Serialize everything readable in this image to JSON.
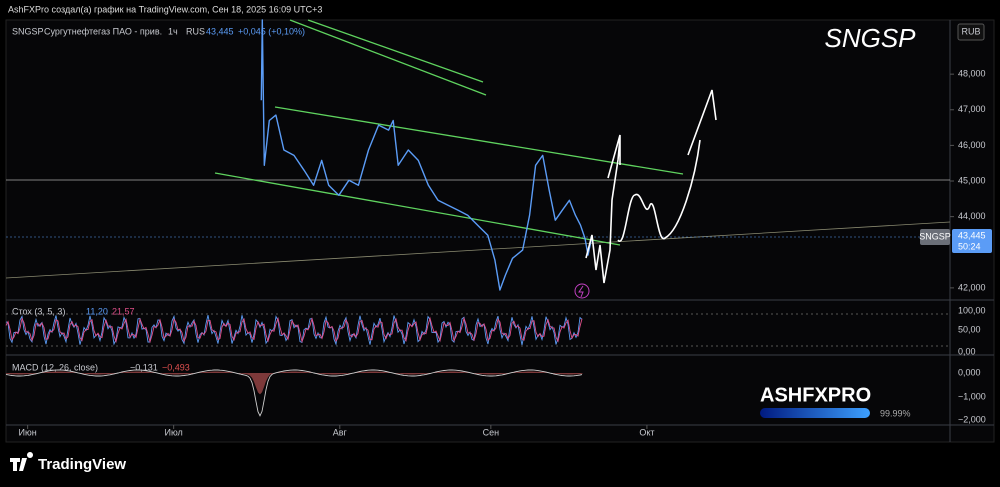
{
  "header": {
    "credit": "AshFXPro создал(а) график на TradingView.com, Сен 18, 2025 16:09 UTC+3"
  },
  "chart_data": {
    "type": "line",
    "title": "SNGSP",
    "legend": {
      "symbol": "SNGSP",
      "name": "Сургутнефтегаз ПАО - прив.",
      "interval": "1ч",
      "exchange": "RUS",
      "last": "43,445",
      "change": "+0,045 (+0,10%)"
    },
    "currency": "RUB",
    "last_label": {
      "symbol": "SNGSP",
      "price": "43,445",
      "countdown": "50:24"
    },
    "x": [
      198.4,
      198.6,
      199.0,
      200.0,
      201.3,
      202.9,
      204.9,
      206.9,
      208.8,
      210.4,
      211.8,
      213.8,
      215.8,
      217.7,
      219.7,
      221.7,
      223.7,
      224.6,
      225.6,
      227.6,
      229.6,
      231.6,
      233.5,
      235.5,
      237.5,
      239.4,
      241.4,
      243.4,
      244.8,
      245.8,
      246.9,
      248.3,
      250.3,
      251.7,
      252.9,
      254.3,
      255.6,
      256.8,
      258.2,
      259.6,
      260.8,
      261.8,
      262.7,
      263.3,
      264.1
    ],
    "series": [
      {
        "name": "SNGSP",
        "color": "#5b9cf6",
        "values": [
          47270,
          49520,
          45440,
          46700,
          46850,
          45870,
          45720,
          45300,
          44880,
          45580,
          44880,
          44600,
          45020,
          44880,
          45870,
          46570,
          46430,
          46700,
          45440,
          45870,
          45580,
          44880,
          44460,
          44320,
          44180,
          44040,
          43760,
          43480,
          42780,
          41940,
          42360,
          42830,
          43060,
          44040,
          45440,
          45720,
          44740,
          43900,
          44180,
          44460,
          44040,
          43760,
          43390,
          42920,
          43445
        ]
      }
    ],
    "xlim": [
      147.7,
      335.2
    ],
    "xticks": [
      {
        "value": 152,
        "label": "Июн"
      },
      {
        "value": 181,
        "label": "Июл"
      },
      {
        "value": 214,
        "label": "Авг"
      },
      {
        "value": 244,
        "label": "Сен"
      },
      {
        "value": 275,
        "label": "Окт"
      }
    ],
    "ylim": [
      41660,
      49520
    ],
    "yticks": [
      {
        "value": 42000,
        "label": "42,000"
      },
      {
        "value": 44000,
        "label": "44,000"
      },
      {
        "value": 45000,
        "label": "45,000"
      },
      {
        "value": 46000,
        "label": "46,000"
      },
      {
        "value": 47000,
        "label": "47,000"
      },
      {
        "value": 48000,
        "label": "48,000"
      }
    ]
  },
  "stochastic": {
    "label": "Стох (3, 5, 3)",
    "k": "11,20",
    "d": "21,57",
    "ticks": [
      "100,00",
      "50,00",
      "0,00"
    ]
  },
  "macd": {
    "label": "MACD (12, 26, close)",
    "macd": "−0,131",
    "signal": "−0,493",
    "ticks": [
      "0,000",
      "−1,000",
      "−2,000"
    ]
  },
  "watermark": {
    "brand": "ASHFXPRO",
    "progress": "99.99%"
  },
  "footer": {
    "logo": "TradingView"
  }
}
